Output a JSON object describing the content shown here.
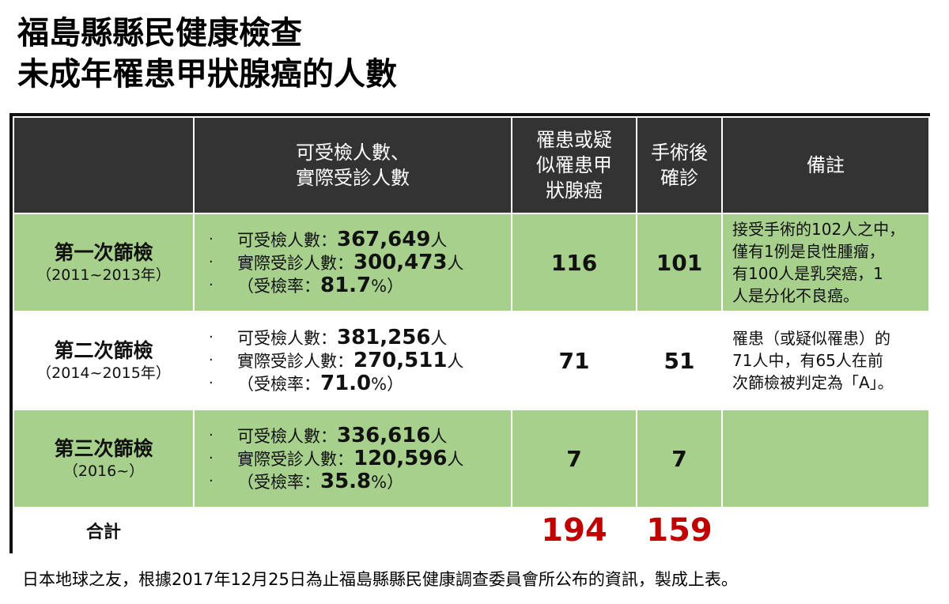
{
  "title": {
    "line1": "福島縣縣民健康檢查",
    "line2": "未成年罹患甲狀腺癌的人數"
  },
  "table": {
    "headers": {
      "col1": "",
      "col2_line1": "可受檢人數、",
      "col2_line2": "實際受診人數",
      "col3_line1": "罹患或疑",
      "col3_line2": "似罹患甲",
      "col3_line3": "狀腺癌",
      "col4_line1": "手術後",
      "col4_line2": "確診",
      "col5": "備註"
    },
    "rows": [
      {
        "name": "第一次篩檢",
        "period": "（2011~2013年）",
        "eligible_label": "可受檢人數：",
        "eligible_value": "367,649",
        "examined_label": "實際受診人數：",
        "examined_value": "300,473",
        "rate_label": "（受檢率：",
        "rate_value": "81.7",
        "rate_suffix": "%）",
        "person_unit": "人",
        "suspected": "116",
        "confirmed": "101",
        "note_lines": [
          "接受手術的102人之中，",
          "僅有1例是良性腫瘤，",
          "有100人是乳突癌，1",
          "人是分化不良癌。"
        ]
      },
      {
        "name": "第二次篩檢",
        "period": "（2014~2015年）",
        "eligible_label": "可受檢人數：",
        "eligible_value": "381,256",
        "examined_label": "實際受診人數：",
        "examined_value": "270,511",
        "rate_label": "（受檢率：",
        "rate_value": "71.0",
        "rate_suffix": "%）",
        "person_unit": "人",
        "suspected": "71",
        "confirmed": "51",
        "note_lines": [
          "罹患（或疑似罹患）的",
          "71人中，有65人在前",
          "次篩檢被判定為「A」。"
        ]
      },
      {
        "name": "第三次篩檢",
        "period": "（2016~）",
        "eligible_label": "可受檢人數：",
        "eligible_value": "336,616",
        "examined_label": "實際受診人數：",
        "examined_value": "120,596",
        "rate_label": "（受檢率：",
        "rate_value": "35.8",
        "rate_suffix": "%）",
        "person_unit": "人",
        "suspected": "7",
        "confirmed": "7",
        "note_lines": []
      }
    ],
    "total": {
      "label": "合計",
      "suspected": "194",
      "confirmed": "159"
    }
  },
  "footnote": "日本地球之友，根據2017年12月25日為止福島縣縣民健康調查委員會所公布的資訊，製成上表。",
  "colors": {
    "header_bg": "#333333",
    "green_row": "#a8d08d",
    "total_red": "#c00000"
  }
}
